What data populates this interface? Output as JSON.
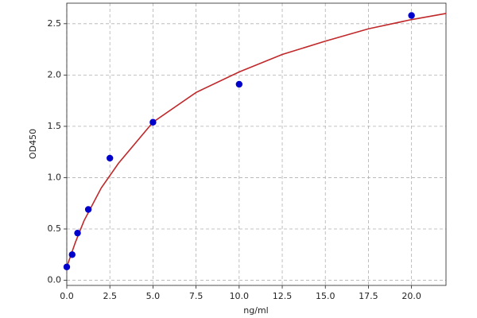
{
  "chart_data": {
    "type": "scatter",
    "x_label": "ng/ml",
    "y_label": "OD450",
    "xlim": [
      0,
      22
    ],
    "ylim": [
      -0.05,
      2.7
    ],
    "xticks": [
      {
        "value": 0,
        "label": "0.0"
      },
      2.5,
      {
        "value": 5,
        "label": "5.0"
      },
      7.5,
      {
        "value": 10,
        "label": "10.0"
      },
      12.5,
      {
        "value": 15,
        "label": "15.0"
      },
      17.5,
      {
        "value": 20,
        "label": "20.0"
      }
    ],
    "yticks": [
      {
        "value": 0,
        "label": "0.0"
      },
      0.5,
      {
        "value": 1,
        "label": "1.0"
      },
      1.5,
      {
        "value": 2,
        "label": "2.0"
      },
      2.5
    ],
    "grid": true,
    "series": [
      {
        "style": "markers",
        "color": "#0000cc",
        "x": [
          0,
          0.3125,
          0.625,
          1.25,
          2.5,
          5,
          10,
          20
        ],
        "values": [
          0.13,
          0.25,
          0.46,
          0.69,
          1.19,
          1.54,
          1.91,
          2.58
        ]
      },
      {
        "style": "line",
        "color": "#c0282a",
        "x": [
          0,
          0.5,
          1,
          2,
          3,
          5,
          7.5,
          10,
          12.5,
          15,
          17.5,
          20,
          22
        ],
        "values": [
          0.13,
          0.37,
          0.58,
          0.9,
          1.14,
          1.54,
          1.83,
          2.03,
          2.2,
          2.33,
          2.45,
          2.54,
          2.6
        ]
      }
    ]
  }
}
